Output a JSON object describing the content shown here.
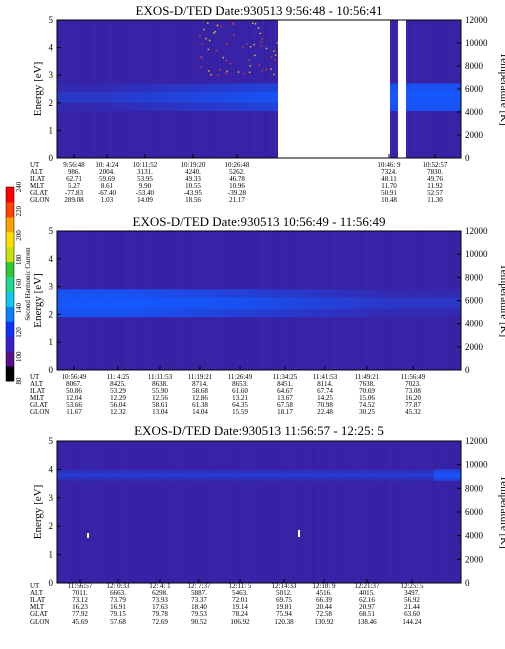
{
  "colors": {
    "background": "#ffffff",
    "panel_base": "#3a1fa0",
    "gap": "#ffffff",
    "colorbar": [
      "#000000",
      "#5a0f8a",
      "#3a1fc8",
      "#1030ff",
      "#0a80ff",
      "#10c8f0",
      "#20d890",
      "#30c830",
      "#c8e010",
      "#ffe000",
      "#ffa000",
      "#ff4000",
      "#ff0000"
    ]
  },
  "chart_data": [
    {
      "type": "heatmap",
      "title": "EXOS-D/TED   Date:930513  9:56:48 - 10:56:41",
      "ylabel": "Energy [eV]",
      "ylabel_right": "Temperature [K]",
      "ylim": [
        0,
        5
      ],
      "ylim_right": [
        0,
        12000
      ],
      "yticks": [
        "0",
        "1",
        "2",
        "3",
        "4",
        "5"
      ],
      "yticks_right": [
        "0",
        "2000",
        "4000",
        "6000",
        "8000",
        "10000",
        "12000"
      ],
      "data_gaps": [
        "10:29-10:45",
        "10:47-10:52"
      ],
      "intensity_band": {
        "energy_center": 2.2,
        "peak_level": 140
      },
      "info_labels": [
        "UT",
        "ALT",
        "ILAT",
        "MLT",
        "GLAT",
        "GLON"
      ],
      "info_columns": [
        [
          "9:56:48",
          "986.",
          "62.71",
          "5.27",
          "-77.83",
          "289.08"
        ],
        [
          "10: 4:24",
          "2004.",
          "59.69",
          "8.61",
          "-67.40",
          "1.03"
        ],
        [
          "10:11:52",
          "3131.",
          "53.95",
          "9.90",
          "-53.40",
          "14.09"
        ],
        [
          "10:19:20",
          "4240.",
          "49.33",
          "10.55",
          "-43.95",
          "18.56"
        ],
        [
          "10:26:48",
          "5262.",
          "46.78",
          "10.96",
          "-39.28",
          "21.17"
        ],
        [
          "10:46: 9",
          "7324.",
          "48.11",
          "11.70",
          "50.91",
          "10.48"
        ],
        [
          "10:52:57",
          "7830.",
          "49.76",
          "11.92",
          "52.57",
          "11.30"
        ]
      ]
    },
    {
      "type": "heatmap",
      "title": "EXOS-D/TED   Date:930513  10:56:49 - 11:56:49",
      "ylabel": "Energy [eV]",
      "ylabel_right": "Temperature [K]",
      "ylim": [
        0,
        5
      ],
      "ylim_right": [
        0,
        12000
      ],
      "yticks": [
        "0",
        "1",
        "2",
        "3",
        "4",
        "5"
      ],
      "yticks_right": [
        "0",
        "2000",
        "4000",
        "6000",
        "8000",
        "10000",
        "12000"
      ],
      "intensity_band": {
        "energy_center": 2.4,
        "peak_level": 130
      },
      "info_labels": [
        "UT",
        "ALT",
        "ILAT",
        "MLT",
        "GLAT",
        "GLON"
      ],
      "info_columns": [
        [
          "10:56:49",
          "8067.",
          "50.86",
          "12.04",
          "53.66",
          "11.67"
        ],
        [
          "11: 4:25",
          "8425.",
          "53.29",
          "12.29",
          "56.04",
          "12.32"
        ],
        [
          "11:11:53",
          "8638.",
          "55.90",
          "12.56",
          "58.61",
          "13.04"
        ],
        [
          "11:19:21",
          "8714.",
          "58.68",
          "12.86",
          "61.38",
          "14.04"
        ],
        [
          "11:26:49",
          "8653.",
          "61.60",
          "13.21",
          "64.35",
          "15.59"
        ],
        [
          "11:34:25",
          "8451.",
          "64.67",
          "13.67",
          "67.58",
          "18.17"
        ],
        [
          "11:41:53",
          "8114.",
          "67.74",
          "14.25",
          "70.98",
          "22.48"
        ],
        [
          "11:49:21",
          "7638.",
          "70.69",
          "15.06",
          "74.52",
          "30.25"
        ],
        [
          "11:56:49",
          "7023.",
          "73.08",
          "16.20",
          "77.87",
          "45.32"
        ]
      ]
    },
    {
      "type": "heatmap",
      "title": "EXOS-D/TED   Date:930513  11:56:57 - 12:25: 5",
      "ylabel": "Energy [eV]",
      "ylabel_right": "Temperature [K]",
      "ylim": [
        0,
        5
      ],
      "ylim_right": [
        0,
        12000
      ],
      "yticks": [
        "0",
        "1",
        "2",
        "3",
        "4",
        "5"
      ],
      "yticks_right": [
        "0",
        "2000",
        "4000",
        "6000",
        "8000",
        "10000",
        "12000"
      ],
      "intensity_band": {
        "energy_center": 3.8,
        "peak_level": 110
      },
      "info_labels": [
        "UT",
        "ALT",
        "ILAT",
        "MLT",
        "GLAT",
        "GLON"
      ],
      "info_columns": [
        [
          "11:56:57",
          "7011.",
          "73.12",
          "16.23",
          "77.92",
          "45.69"
        ],
        [
          "12: 0:33",
          "6663.",
          "73.79",
          "16.91",
          "79.15",
          "57.68"
        ],
        [
          "12: 4: 1",
          "6298.",
          "73.93",
          "17.63",
          "79.78",
          "72.69"
        ],
        [
          "12: 7:37",
          "5887.",
          "73.37",
          "18.40",
          "79.53",
          "90.52"
        ],
        [
          "12:11: 5",
          "5463.",
          "72.01",
          "19.14",
          "78.24",
          "106.92"
        ],
        [
          "12:14:33",
          "5012.",
          "69.75",
          "19.81",
          "75.94",
          "120.38"
        ],
        [
          "12:18: 9",
          "4516.",
          "66.39",
          "20.44",
          "72.58",
          "130.92"
        ],
        [
          "12:21:37",
          "4015.",
          "62.16",
          "20.97",
          "68.51",
          "138.46"
        ],
        [
          "12:25: 5",
          "3497.",
          "56.92",
          "21.44",
          "63.60",
          "144.24"
        ]
      ]
    }
  ],
  "colorbar": {
    "label": "Second Harmonic Current",
    "ticks": [
      "80",
      "100",
      "120",
      "140",
      "160",
      "180",
      "200",
      "220",
      "240"
    ]
  }
}
